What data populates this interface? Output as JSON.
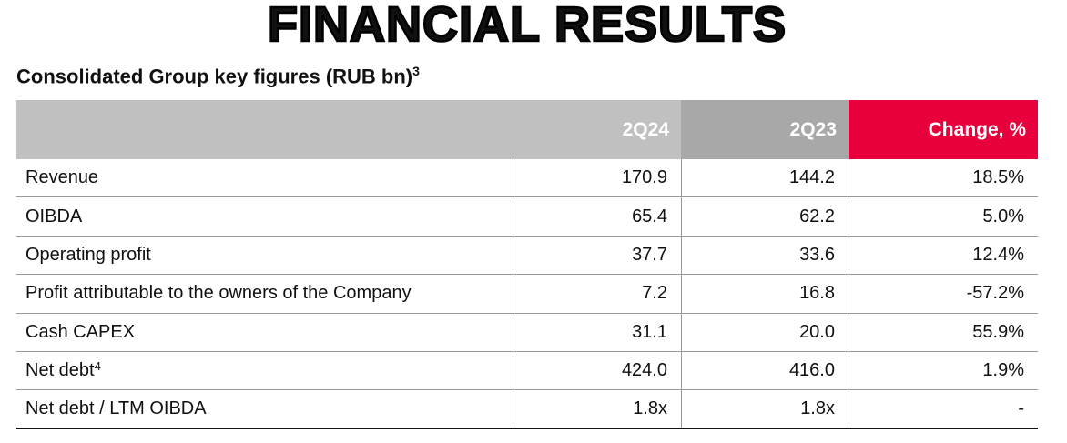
{
  "header": {
    "title": "FINANCIAL RESULTS",
    "subtitle": "Consolidated Group key figures (RUB bn)",
    "subtitle_note": "3"
  },
  "table": {
    "columns": [
      "2Q24",
      "2Q23",
      "Change, %"
    ],
    "rows": [
      {
        "label": "Revenue",
        "cells": [
          "170.9",
          "144.2",
          "18.5%"
        ]
      },
      {
        "label": "OIBDA",
        "cells": [
          "65.4",
          "62.2",
          "5.0%"
        ]
      },
      {
        "label": "Operating profit",
        "cells": [
          "37.7",
          "33.6",
          "12.4%"
        ]
      },
      {
        "label": "Profit attributable to the owners of the Company",
        "cells": [
          "7.2",
          "16.8",
          "-57.2%"
        ]
      },
      {
        "label": "Cash CAPEX",
        "cells": [
          "31.1",
          "20.0",
          "55.9%"
        ]
      },
      {
        "label": "Net debt",
        "note": "4",
        "cells": [
          "424.0",
          "416.0",
          "1.9%"
        ]
      },
      {
        "label": "Net debt / LTM OIBDA",
        "cells": [
          "1.8x",
          "1.8x",
          "-"
        ]
      }
    ]
  }
}
